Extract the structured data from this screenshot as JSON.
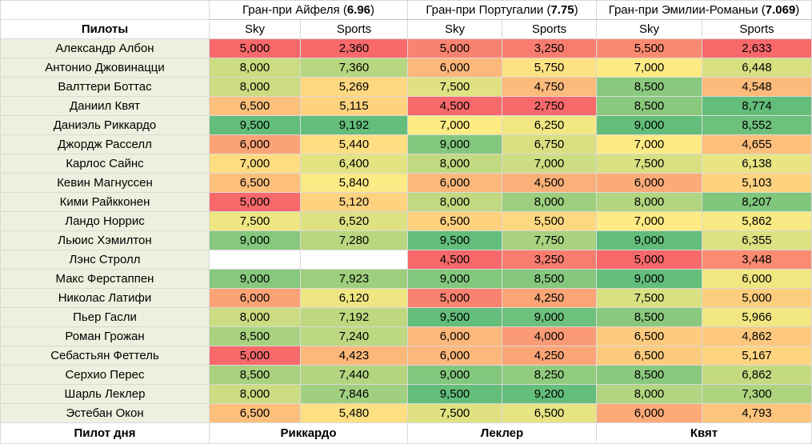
{
  "header": {
    "drivers_label": "Пилоты",
    "source_labels": [
      "Sky",
      "Sports"
    ]
  },
  "races": [
    {
      "name": "Гран-при Айфеля",
      "rating": "6.96"
    },
    {
      "name": "Гран-при Португалии",
      "rating": "7.75"
    },
    {
      "name": "Гран-при Эмилии-Романьи",
      "rating": "7.069"
    }
  ],
  "rows": [
    {
      "driver": "Александр Албон",
      "values": [
        "5,000",
        "2,360",
        "5,000",
        "3,250",
        "5,500",
        "2,633"
      ]
    },
    {
      "driver": "Антонио Джовинацци",
      "values": [
        "8,000",
        "7,360",
        "6,000",
        "5,750",
        "7,000",
        "6,448"
      ]
    },
    {
      "driver": "Валттери Боттас",
      "values": [
        "8,000",
        "5,269",
        "7,500",
        "4,750",
        "8,500",
        "4,548"
      ]
    },
    {
      "driver": "Даниил Квят",
      "values": [
        "6,500",
        "5,115",
        "4,500",
        "2,750",
        "8,500",
        "8,774"
      ]
    },
    {
      "driver": "Даниэль Риккардо",
      "values": [
        "9,500",
        "9,192",
        "7,000",
        "6,250",
        "9,000",
        "8,552"
      ]
    },
    {
      "driver": "Джордж Расселл",
      "values": [
        "6,000",
        "5,440",
        "9,000",
        "6,750",
        "7,000",
        "4,655"
      ]
    },
    {
      "driver": "Карлос Сайнс",
      "values": [
        "7,000",
        "6,400",
        "8,000",
        "7,000",
        "7,500",
        "6,138"
      ]
    },
    {
      "driver": "Кевин Магнуссен",
      "values": [
        "6,500",
        "5,840",
        "6,000",
        "4,500",
        "6,000",
        "5,103"
      ]
    },
    {
      "driver": "Кими Райкконен",
      "values": [
        "5,000",
        "5,120",
        "8,000",
        "8,000",
        "8,000",
        "8,207"
      ]
    },
    {
      "driver": "Ландо Норрис",
      "values": [
        "7,500",
        "6,520",
        "6,500",
        "5,500",
        "7,000",
        "5,862"
      ]
    },
    {
      "driver": "Льюис Хэмилтон",
      "values": [
        "9,000",
        "7,280",
        "9,500",
        "7,750",
        "9,000",
        "6,355"
      ]
    },
    {
      "driver": "Лэнс Стролл",
      "values": [
        "",
        "",
        "4,500",
        "3,250",
        "5,000",
        "3,448"
      ]
    },
    {
      "driver": "Макс Ферстаппен",
      "values": [
        "9,000",
        "7,923",
        "9,000",
        "8,500",
        "9,000",
        "6,000"
      ]
    },
    {
      "driver": "Николас Латифи",
      "values": [
        "6,000",
        "6,120",
        "5,000",
        "4,250",
        "7,500",
        "5,000"
      ]
    },
    {
      "driver": "Пьер Гасли",
      "values": [
        "8,000",
        "7,192",
        "9,500",
        "9,000",
        "8,500",
        "5,966"
      ]
    },
    {
      "driver": "Роман Грожан",
      "values": [
        "8,500",
        "7,240",
        "6,000",
        "4,000",
        "6,500",
        "4,862"
      ]
    },
    {
      "driver": "Себастьян Феттель",
      "values": [
        "5,000",
        "4,423",
        "6,000",
        "4,250",
        "6,500",
        "5,167"
      ]
    },
    {
      "driver": "Серхио Перес",
      "values": [
        "8,500",
        "7,440",
        "9,000",
        "8,250",
        "8,500",
        "6,862"
      ]
    },
    {
      "driver": "Шарль Леклер",
      "values": [
        "8,000",
        "7,846",
        "9,500",
        "9,200",
        "8,000",
        "7,300"
      ]
    },
    {
      "driver": "Эстебан Окон",
      "values": [
        "6,500",
        "5,480",
        "7,500",
        "6,500",
        "6,000",
        "4,793"
      ]
    }
  ],
  "footer": {
    "label": "Пилот дня",
    "winners": [
      "Риккардо",
      "Леклер",
      "Квят"
    ]
  },
  "colors": {
    "scale_low": "#f8696b",
    "scale_mid": "#ffeb84",
    "scale_high": "#63be7b",
    "driver_cell_bg": "#ebf1de"
  }
}
